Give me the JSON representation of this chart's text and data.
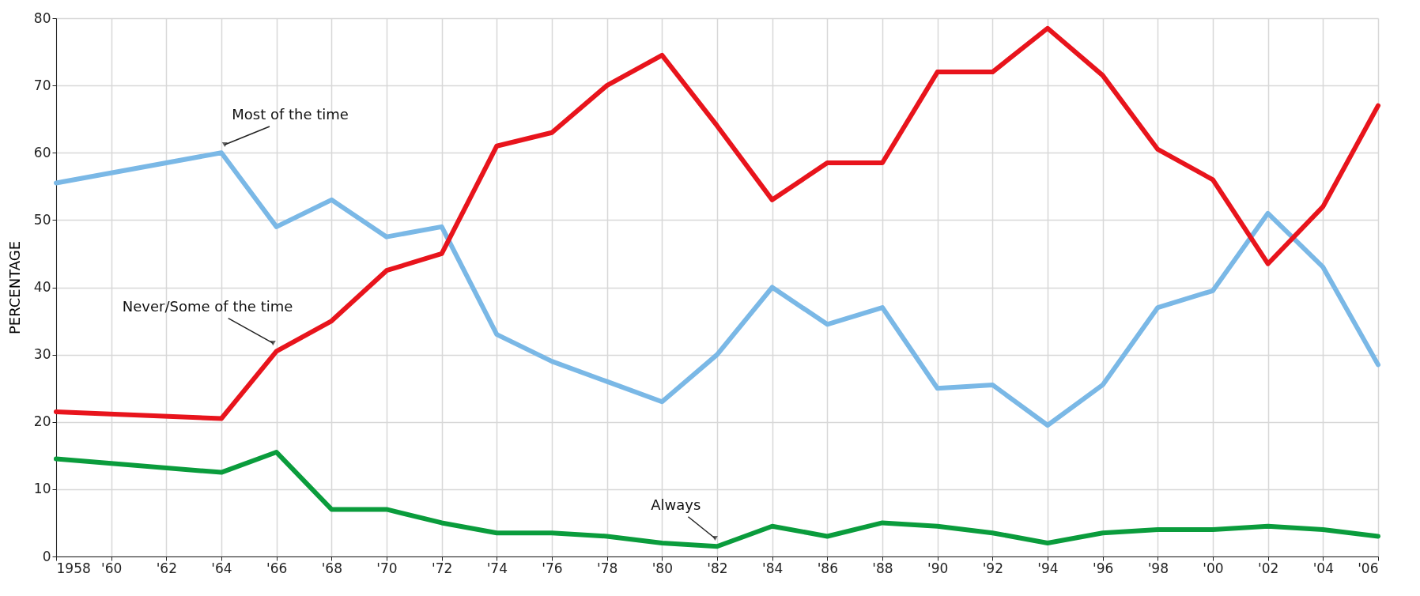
{
  "chart_data": {
    "type": "line",
    "ylabel": "PERCENTAGE",
    "x": [
      1958,
      1964,
      1966,
      1968,
      1970,
      1972,
      1974,
      1976,
      1978,
      1980,
      1982,
      1984,
      1986,
      1988,
      1990,
      1992,
      1994,
      1996,
      1998,
      2000,
      2002,
      2004,
      2006
    ],
    "series": [
      {
        "name": "Most of the time",
        "color": "#7ab8e6",
        "values": [
          55.5,
          60,
          49,
          53,
          47.5,
          49,
          33,
          29,
          26,
          23,
          30,
          40,
          34.5,
          37,
          25,
          25.5,
          19.5,
          25.5,
          37,
          39.5,
          51,
          43,
          28.5
        ]
      },
      {
        "name": "Never/Some of the time",
        "color": "#e8141c",
        "values": [
          21.5,
          20.5,
          30.5,
          35,
          42.5,
          45,
          61,
          63,
          70,
          74.5,
          64,
          53,
          58.5,
          58.5,
          72,
          72,
          78.5,
          71.5,
          60.5,
          56,
          43.5,
          52,
          67
        ]
      },
      {
        "name": "Always",
        "color": "#0a9c3c",
        "values": [
          14.5,
          12.5,
          15.5,
          7,
          7,
          5,
          3.5,
          3.5,
          3,
          2,
          1.5,
          4.5,
          3,
          5,
          4.5,
          3.5,
          2,
          3.5,
          4,
          4,
          4.5,
          4,
          3
        ]
      }
    ],
    "xlim": [
      1958,
      2006
    ],
    "xticks": [
      1958,
      {
        "value": 1960,
        "label": "'60"
      },
      {
        "value": 1962,
        "label": "'62"
      },
      {
        "value": 1964,
        "label": "'64"
      },
      {
        "value": 1966,
        "label": "'66"
      },
      {
        "value": 1968,
        "label": "'68"
      },
      {
        "value": 1970,
        "label": "'70"
      },
      {
        "value": 1972,
        "label": "'72"
      },
      {
        "value": 1974,
        "label": "'74"
      },
      {
        "value": 1976,
        "label": "'76"
      },
      {
        "value": 1978,
        "label": "'78"
      },
      {
        "value": 1980,
        "label": "'80"
      },
      {
        "value": 1982,
        "label": "'82"
      },
      {
        "value": 1984,
        "label": "'84"
      },
      {
        "value": 1986,
        "label": "'86"
      },
      {
        "value": 1988,
        "label": "'88"
      },
      {
        "value": 1990,
        "label": "'90"
      },
      {
        "value": 1992,
        "label": "'92"
      },
      {
        "value": 1994,
        "label": "'94"
      },
      {
        "value": 1996,
        "label": "'96"
      },
      {
        "value": 1998,
        "label": "'98"
      },
      {
        "value": 2000,
        "label": "'00"
      },
      {
        "value": 2002,
        "label": "'02"
      },
      {
        "value": 2004,
        "label": "'04"
      },
      {
        "value": 2006,
        "label": "'06"
      }
    ],
    "ylim": [
      0,
      80
    ],
    "yticks": [
      0,
      10,
      20,
      30,
      40,
      50,
      60,
      70,
      80
    ],
    "grid": true,
    "marker": "none",
    "line_style": "solid"
  }
}
